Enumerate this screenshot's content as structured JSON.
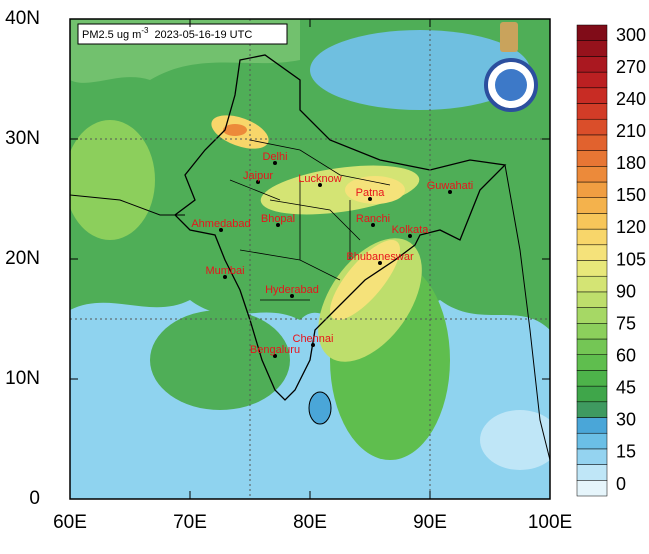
{
  "map": {
    "title": {
      "variable": "PM2.5 ug m",
      "exponent": "-3",
      "time": "2023-05-16-19 UTC"
    },
    "lat_ticks": [
      {
        "value": 0,
        "label": "0"
      },
      {
        "value": 10,
        "label": "10N"
      },
      {
        "value": 20,
        "label": "20N"
      },
      {
        "value": 30,
        "label": "30N"
      },
      {
        "value": 40,
        "label": "40N"
      }
    ],
    "lon_ticks": [
      {
        "value": 60,
        "label": "60E"
      },
      {
        "value": 70,
        "label": "70E"
      },
      {
        "value": 80,
        "label": "80E"
      },
      {
        "value": 90,
        "label": "90E"
      },
      {
        "value": 100,
        "label": "100E"
      }
    ],
    "cities": [
      "Delhi",
      "Jaipur",
      "Lucknow",
      "Patna",
      "Guwahati",
      "Ahmedabad",
      "Bhopal",
      "Ranchi",
      "Kolkata",
      "Mumbai",
      "Bhubaneswar",
      "Hyderabad",
      "Chennai",
      "Bengaluru"
    ],
    "colorbar": {
      "labels": [
        0,
        15,
        30,
        45,
        60,
        75,
        90,
        105,
        120,
        150,
        180,
        210,
        240,
        270,
        300
      ],
      "colors": [
        "#e6f5fb",
        "#bfe6f7",
        "#94d3f0",
        "#6bbfe6",
        "#4aa6d8",
        "#3f9a60",
        "#3fa64a",
        "#4db34a",
        "#5fbe4e",
        "#74c655",
        "#8ccf5c",
        "#a6d865",
        "#bede6c",
        "#d4e474",
        "#e8e87a",
        "#f5e27a",
        "#f8d66a",
        "#f7c65a",
        "#f4b24c",
        "#f09e42",
        "#ec8a3a",
        "#e77634",
        "#e1622e",
        "#da4e2a",
        "#d23c27",
        "#c82c24",
        "#bb2022",
        "#aa1820",
        "#96121c",
        "#800c18"
      ]
    }
  }
}
